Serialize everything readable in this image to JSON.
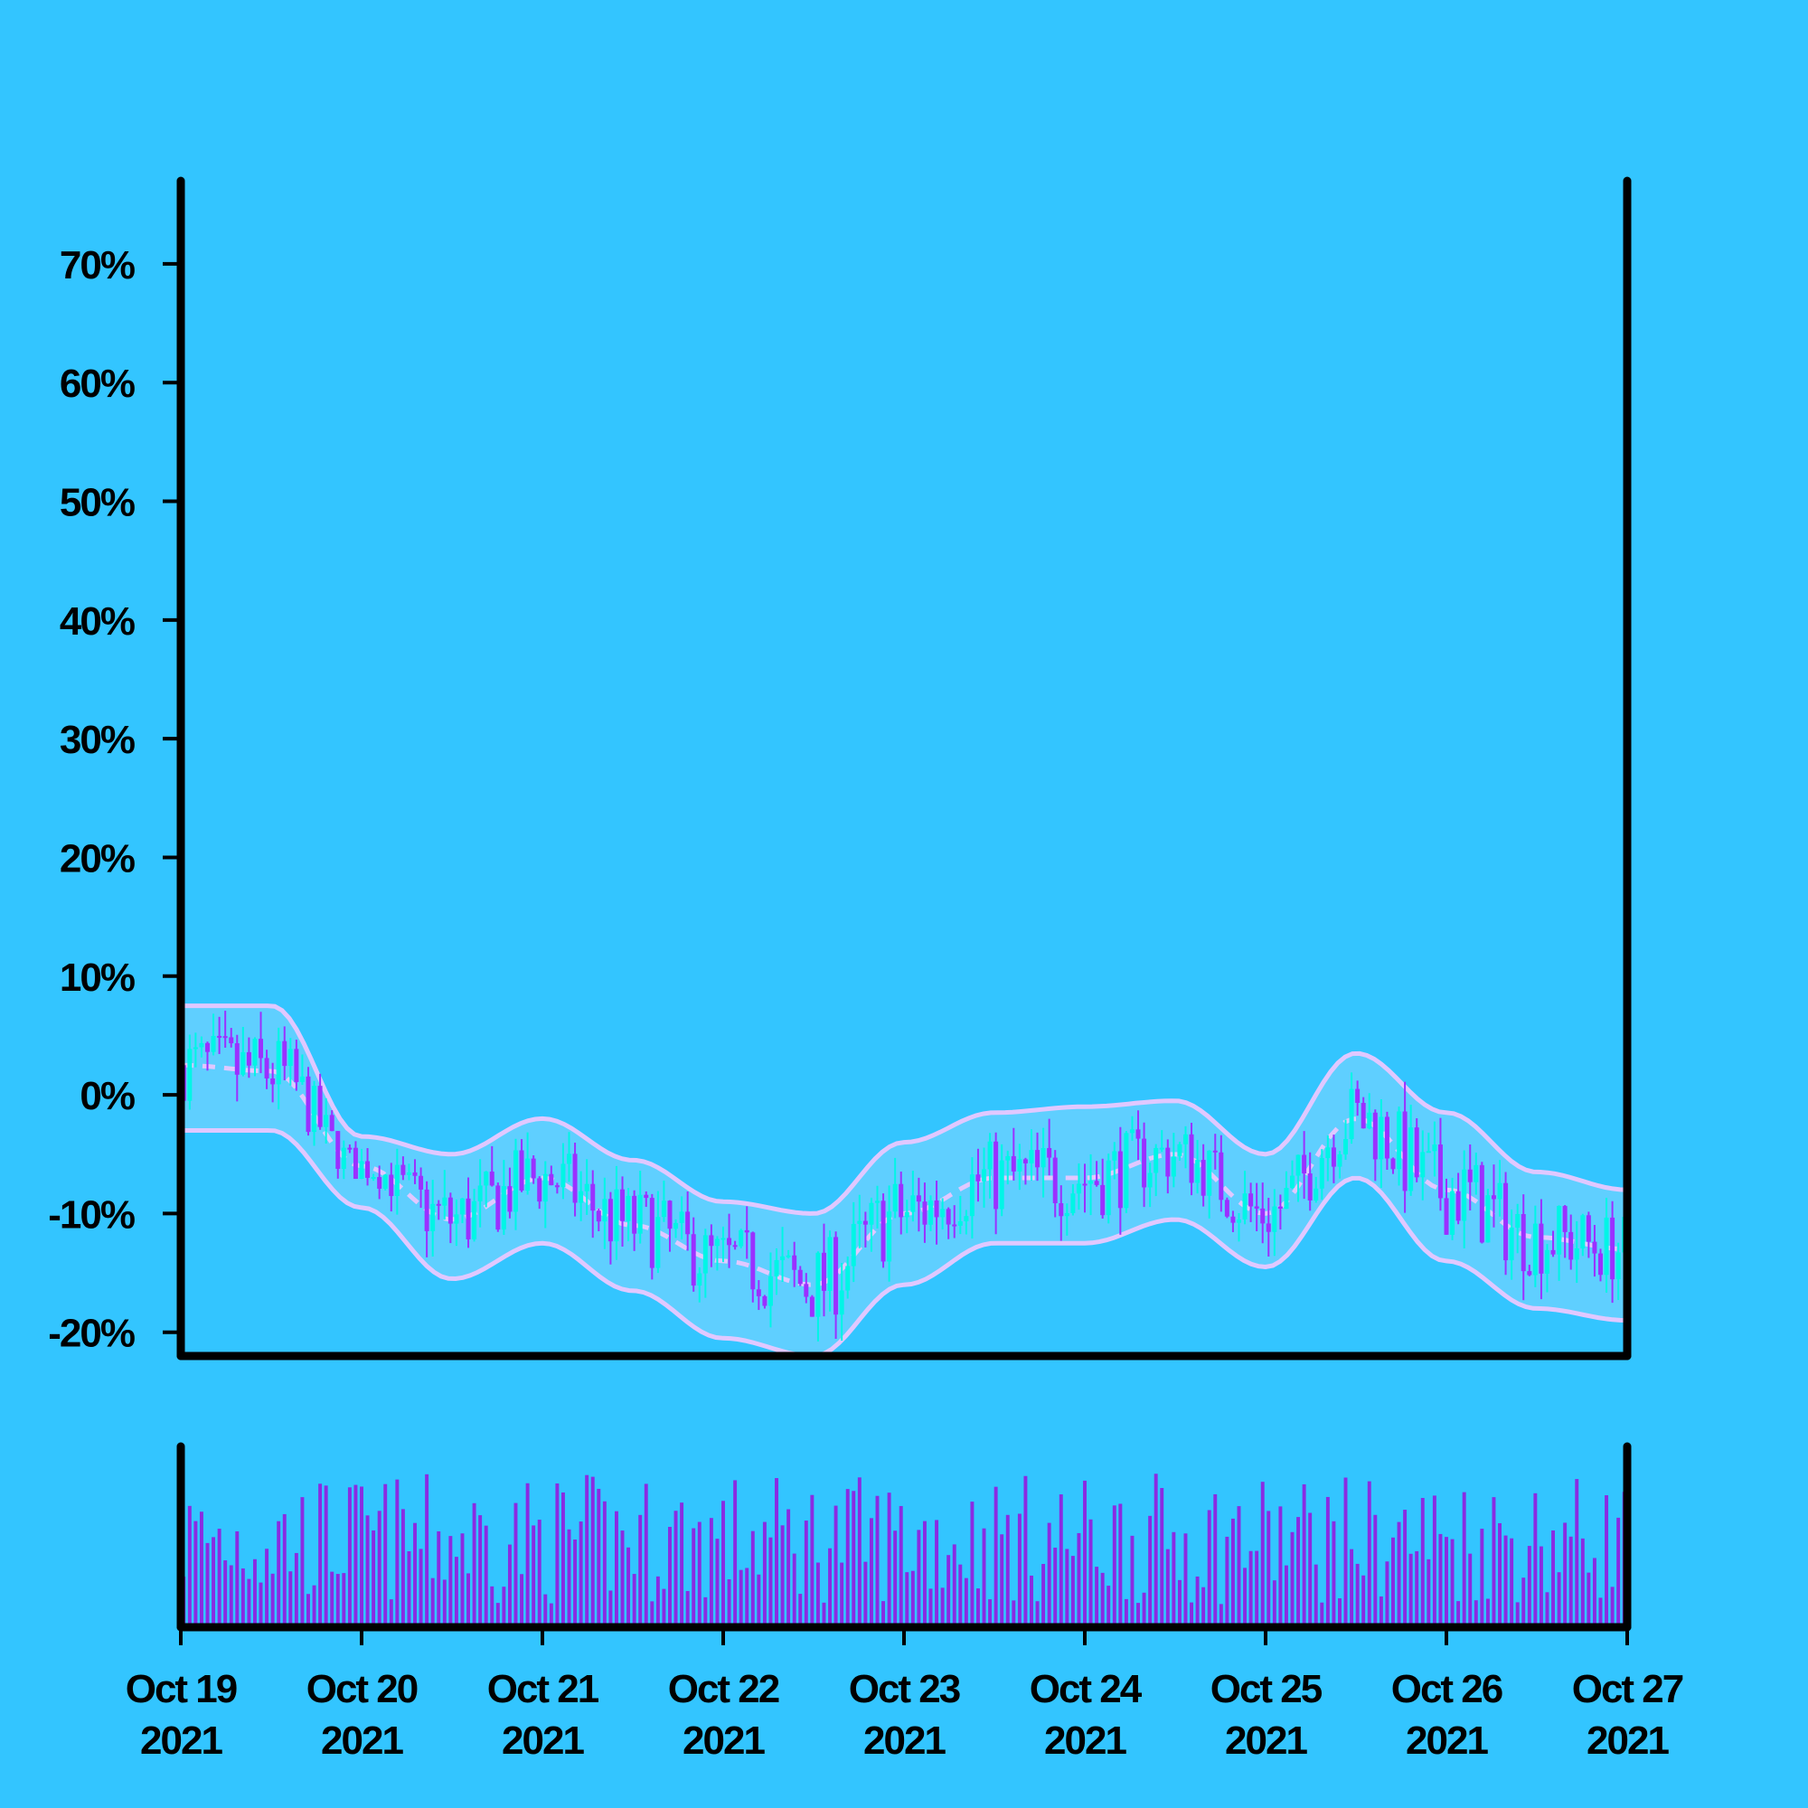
{
  "colors": {
    "background": "#33c5ff",
    "axis": "#000000",
    "up_candle": "#00f5e6",
    "down_candle": "#9b30ff",
    "band_line": "#e0c8ff",
    "band_fill": "#6fd2ff",
    "volume_bar": "#8a2be2"
  },
  "chart_data": {
    "type": "candlestick",
    "title": "",
    "xlabel": "",
    "ylabel": "",
    "y_axis": {
      "ticks": [
        "-20%",
        "-10%",
        "0%",
        "10%",
        "20%",
        "30%",
        "40%",
        "50%",
        "60%",
        "70%"
      ],
      "tick_values": [
        -20,
        -10,
        0,
        10,
        20,
        30,
        40,
        50,
        60,
        70
      ],
      "ylim": [
        -22,
        77
      ],
      "unit": "%"
    },
    "x_axis": {
      "ticks": [
        {
          "date": "Oct 19",
          "year": "2021"
        },
        {
          "date": "Oct 20",
          "year": "2021"
        },
        {
          "date": "Oct 21",
          "year": "2021"
        },
        {
          "date": "Oct 22",
          "year": "2021"
        },
        {
          "date": "Oct 23",
          "year": "2021"
        },
        {
          "date": "Oct 24",
          "year": "2021"
        },
        {
          "date": "Oct 25",
          "year": "2021"
        },
        {
          "date": "Oct 26",
          "year": "2021"
        },
        {
          "date": "Oct 27",
          "year": "2021"
        }
      ],
      "xlim": [
        "2021-10-19",
        "2021-10-27"
      ]
    },
    "bands": {
      "style": "bollinger",
      "times": [
        "2021-10-19 00:00",
        "2021-10-19 12:00",
        "2021-10-20 00:00",
        "2021-10-20 12:00",
        "2021-10-21 00:00",
        "2021-10-21 12:00",
        "2021-10-22 00:00",
        "2021-10-22 12:00",
        "2021-10-23 00:00",
        "2021-10-23 12:00",
        "2021-10-24 00:00",
        "2021-10-24 12:00",
        "2021-10-25 00:00",
        "2021-10-25 12:00",
        "2021-10-26 00:00",
        "2021-10-26 12:00",
        "2021-10-27 00:00"
      ],
      "middle": [
        2.5,
        2,
        -6,
        -10.5,
        -7,
        -11,
        -14,
        -16,
        -10,
        -7,
        -7,
        -5,
        -10,
        -2,
        -8,
        -12,
        -13
      ],
      "upper": [
        7.5,
        7.5,
        -3.5,
        -5,
        -2,
        -5.5,
        -9,
        -10,
        -4,
        -1.5,
        -1,
        -0.5,
        -5,
        3.5,
        -1.5,
        -6.5,
        -8
      ],
      "lower": [
        -3,
        -3,
        -9.5,
        -15.5,
        -12.5,
        -16.5,
        -20.5,
        -22,
        -16,
        -12.5,
        -12.5,
        -10.5,
        -14.5,
        -7,
        -14,
        -18,
        -19
      ]
    },
    "candle_count": 244,
    "volume": {
      "max_relative": 1.0
    }
  }
}
